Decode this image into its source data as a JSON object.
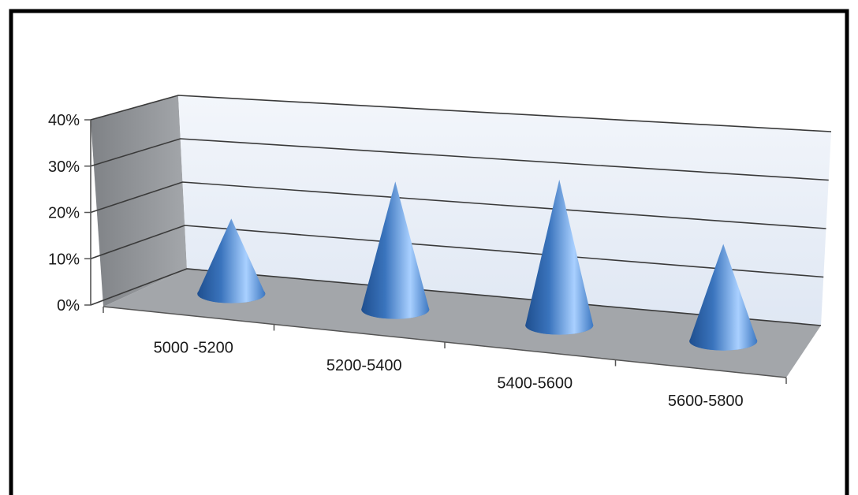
{
  "chart_data": {
    "type": "bar",
    "style": "3d-cone",
    "categories": [
      "5000 -5200",
      "5200-5400",
      "5400-5600",
      "5600-5800"
    ],
    "values": [
      0.17,
      0.29,
      0.33,
      0.22
    ],
    "ylim": [
      0,
      0.4
    ],
    "yticks": [
      "0%",
      "10%",
      "20%",
      "30%",
      "40%"
    ],
    "title": "",
    "xlabel": "",
    "ylabel": "",
    "grid": true,
    "legend": "none",
    "colors": {
      "cone_dark": "#1f4f8f",
      "cone_mid": "#4a86cf",
      "cone_light": "#a9d0ff",
      "back_wall": "#e8eef8",
      "side_wall": "#8f9296",
      "floor": "#a3a6aa",
      "gridline": "#3a3a3a",
      "frame": "#000000"
    }
  }
}
